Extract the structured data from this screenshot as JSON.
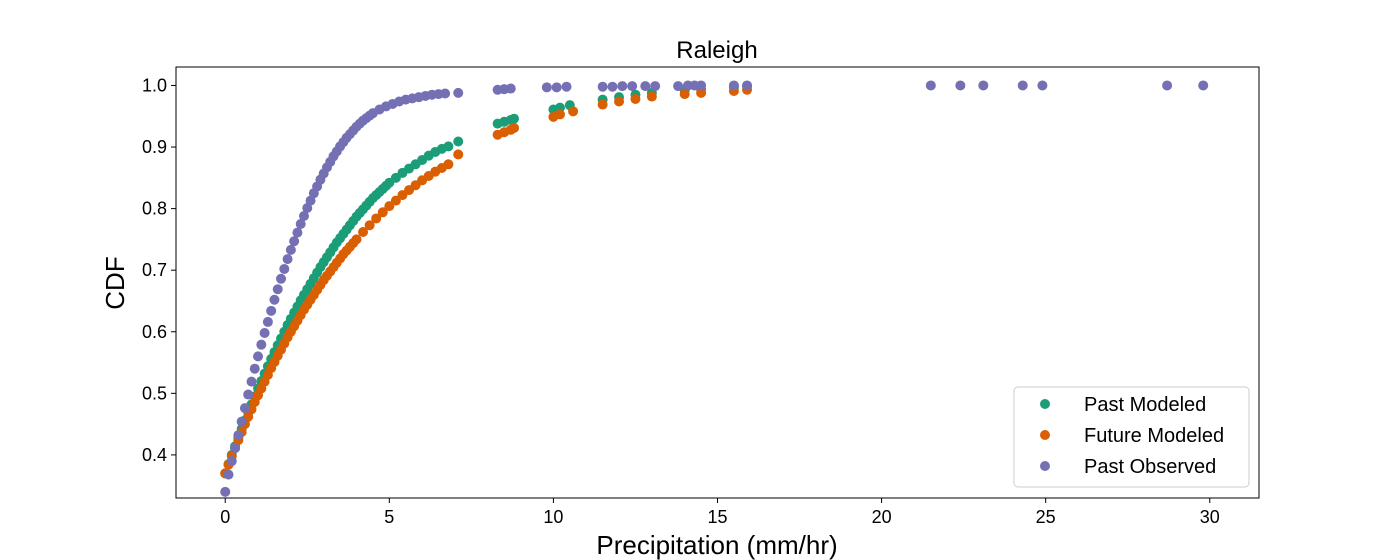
{
  "chart_data": {
    "type": "scatter",
    "title": "Raleigh",
    "xlabel": "Precipitation (mm/hr)",
    "ylabel": "CDF",
    "xlim": [
      -1.5,
      31.5
    ],
    "ylim": [
      0.33,
      1.03
    ],
    "xticks": [
      0,
      5,
      10,
      15,
      20,
      25,
      30
    ],
    "xtick_labels": [
      "0",
      "5",
      "10",
      "15",
      "20",
      "25",
      "30"
    ],
    "yticks": [
      0.4,
      0.5,
      0.6,
      0.7,
      0.8,
      0.9,
      1.0
    ],
    "ytick_labels": [
      "0.4",
      "0.5",
      "0.6",
      "0.7",
      "0.8",
      "0.9",
      "1.0"
    ],
    "grid": false,
    "legend_position": "lower-right",
    "series": [
      {
        "name": "Past Modeled",
        "color": "#1b9e77",
        "x": [
          0.0,
          0.1,
          0.2,
          0.3,
          0.4,
          0.5,
          0.6,
          0.7,
          0.8,
          0.9,
          1.0,
          1.1,
          1.2,
          1.3,
          1.4,
          1.5,
          1.6,
          1.7,
          1.8,
          1.9,
          2.0,
          2.1,
          2.2,
          2.3,
          2.4,
          2.5,
          2.6,
          2.7,
          2.8,
          2.9,
          3.0,
          3.1,
          3.2,
          3.3,
          3.4,
          3.5,
          3.6,
          3.7,
          3.8,
          3.9,
          4.0,
          4.1,
          4.2,
          4.3,
          4.4,
          4.5,
          4.6,
          4.7,
          4.8,
          4.9,
          5.0,
          5.2,
          5.4,
          5.6,
          5.8,
          6.0,
          6.2,
          6.4,
          6.6,
          6.8,
          7.1,
          8.3,
          8.5,
          8.7,
          8.8,
          10.0,
          10.2,
          10.5,
          11.5,
          12.0,
          12.5,
          13.0,
          14.0,
          14.5,
          15.5,
          15.9
        ],
        "y": [
          0.37,
          0.385,
          0.4,
          0.414,
          0.428,
          0.442,
          0.456,
          0.469,
          0.482,
          0.495,
          0.508,
          0.52,
          0.532,
          0.544,
          0.556,
          0.567,
          0.578,
          0.589,
          0.6,
          0.611,
          0.621,
          0.631,
          0.641,
          0.651,
          0.66,
          0.669,
          0.678,
          0.687,
          0.696,
          0.705,
          0.713,
          0.721,
          0.729,
          0.737,
          0.745,
          0.752,
          0.759,
          0.766,
          0.773,
          0.78,
          0.787,
          0.793,
          0.799,
          0.805,
          0.811,
          0.817,
          0.822,
          0.827,
          0.832,
          0.837,
          0.842,
          0.85,
          0.858,
          0.865,
          0.872,
          0.879,
          0.886,
          0.892,
          0.897,
          0.901,
          0.909,
          0.938,
          0.941,
          0.944,
          0.946,
          0.961,
          0.964,
          0.968,
          0.977,
          0.981,
          0.985,
          0.988,
          0.992,
          0.994,
          0.997,
          0.999
        ]
      },
      {
        "name": "Future Modeled",
        "color": "#d95f02",
        "x": [
          0.0,
          0.1,
          0.2,
          0.3,
          0.4,
          0.5,
          0.6,
          0.7,
          0.8,
          0.9,
          1.0,
          1.1,
          1.2,
          1.3,
          1.4,
          1.5,
          1.6,
          1.7,
          1.8,
          1.9,
          2.0,
          2.1,
          2.2,
          2.3,
          2.4,
          2.5,
          2.6,
          2.7,
          2.8,
          2.9,
          3.0,
          3.1,
          3.2,
          3.3,
          3.4,
          3.5,
          3.6,
          3.7,
          3.8,
          3.9,
          4.0,
          4.2,
          4.4,
          4.6,
          4.8,
          5.0,
          5.2,
          5.4,
          5.6,
          5.8,
          6.0,
          6.2,
          6.4,
          6.6,
          6.8,
          7.1,
          8.3,
          8.5,
          8.7,
          8.8,
          10.0,
          10.2,
          10.6,
          11.5,
          12.0,
          12.5,
          13.0,
          14.0,
          14.5,
          15.5,
          15.9
        ],
        "y": [
          0.37,
          0.384,
          0.398,
          0.411,
          0.424,
          0.437,
          0.45,
          0.462,
          0.474,
          0.486,
          0.497,
          0.508,
          0.519,
          0.53,
          0.541,
          0.551,
          0.561,
          0.571,
          0.581,
          0.591,
          0.6,
          0.609,
          0.618,
          0.627,
          0.636,
          0.644,
          0.652,
          0.66,
          0.668,
          0.676,
          0.684,
          0.691,
          0.698,
          0.705,
          0.712,
          0.719,
          0.726,
          0.732,
          0.738,
          0.744,
          0.75,
          0.762,
          0.773,
          0.784,
          0.794,
          0.804,
          0.813,
          0.822,
          0.83,
          0.838,
          0.846,
          0.853,
          0.86,
          0.866,
          0.872,
          0.888,
          0.92,
          0.924,
          0.928,
          0.931,
          0.949,
          0.953,
          0.958,
          0.969,
          0.974,
          0.978,
          0.982,
          0.986,
          0.988,
          0.991,
          0.993
        ]
      },
      {
        "name": "Past Observed",
        "color": "#7570b3",
        "x": [
          0.0,
          0.1,
          0.2,
          0.3,
          0.4,
          0.5,
          0.6,
          0.7,
          0.8,
          0.9,
          1.0,
          1.1,
          1.2,
          1.3,
          1.4,
          1.5,
          1.6,
          1.7,
          1.8,
          1.9,
          2.0,
          2.1,
          2.2,
          2.3,
          2.4,
          2.5,
          2.6,
          2.7,
          2.8,
          2.9,
          3.0,
          3.1,
          3.2,
          3.3,
          3.4,
          3.5,
          3.6,
          3.7,
          3.8,
          3.9,
          4.0,
          4.1,
          4.2,
          4.3,
          4.4,
          4.5,
          4.7,
          4.9,
          5.1,
          5.3,
          5.5,
          5.7,
          5.9,
          6.1,
          6.3,
          6.5,
          6.7,
          7.1,
          8.3,
          8.5,
          8.7,
          9.8,
          10.1,
          10.4,
          11.5,
          11.8,
          12.1,
          12.4,
          12.8,
          13.1,
          13.8,
          14.1,
          14.3,
          14.5,
          15.5,
          15.9,
          21.5,
          22.4,
          23.1,
          24.3,
          24.9,
          28.7,
          29.8
        ],
        "y": [
          0.34,
          0.368,
          0.39,
          0.411,
          0.432,
          0.454,
          0.476,
          0.498,
          0.519,
          0.54,
          0.56,
          0.579,
          0.598,
          0.616,
          0.634,
          0.652,
          0.669,
          0.686,
          0.702,
          0.718,
          0.733,
          0.747,
          0.761,
          0.775,
          0.788,
          0.801,
          0.813,
          0.825,
          0.836,
          0.847,
          0.857,
          0.867,
          0.876,
          0.885,
          0.893,
          0.901,
          0.908,
          0.915,
          0.921,
          0.927,
          0.933,
          0.938,
          0.943,
          0.947,
          0.951,
          0.955,
          0.961,
          0.966,
          0.97,
          0.974,
          0.977,
          0.979,
          0.981,
          0.983,
          0.985,
          0.986,
          0.987,
          0.988,
          0.993,
          0.994,
          0.995,
          0.997,
          0.997,
          0.998,
          0.998,
          0.998,
          0.999,
          0.999,
          0.999,
          0.999,
          0.999,
          1.0,
          1.0,
          1.0,
          1.0,
          1.0,
          1.0,
          1.0,
          1.0,
          1.0,
          1.0,
          1.0,
          1.0
        ]
      }
    ]
  }
}
